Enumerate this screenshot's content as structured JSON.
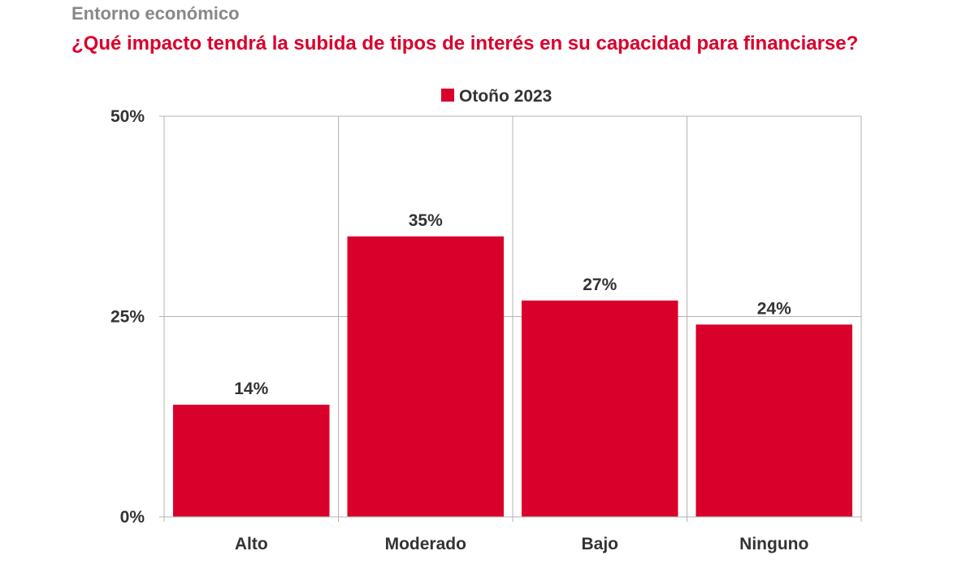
{
  "header": {
    "section": "Entorno económico",
    "question": "¿Qué impacto tendrá la subida de tipos de interés en su capacidad para financiarse?"
  },
  "chart_data": {
    "type": "bar",
    "categories": [
      "Alto",
      "Moderado",
      "Bajo",
      "Ninguno"
    ],
    "series": [
      {
        "name": "Otoño 2023",
        "values": [
          14,
          35,
          27,
          24
        ]
      }
    ],
    "data_labels": [
      "14%",
      "35%",
      "27%",
      "24%"
    ],
    "y_ticks": [
      {
        "value": 0,
        "label": "0%"
      },
      {
        "value": 25,
        "label": "25%"
      },
      {
        "value": 50,
        "label": "50%"
      }
    ],
    "ylim": [
      0,
      50
    ],
    "grid": true,
    "legend_position": "top-center",
    "colors": {
      "bar": "#d9002b",
      "grid": "#b3b3b3",
      "text": "#333333"
    }
  }
}
